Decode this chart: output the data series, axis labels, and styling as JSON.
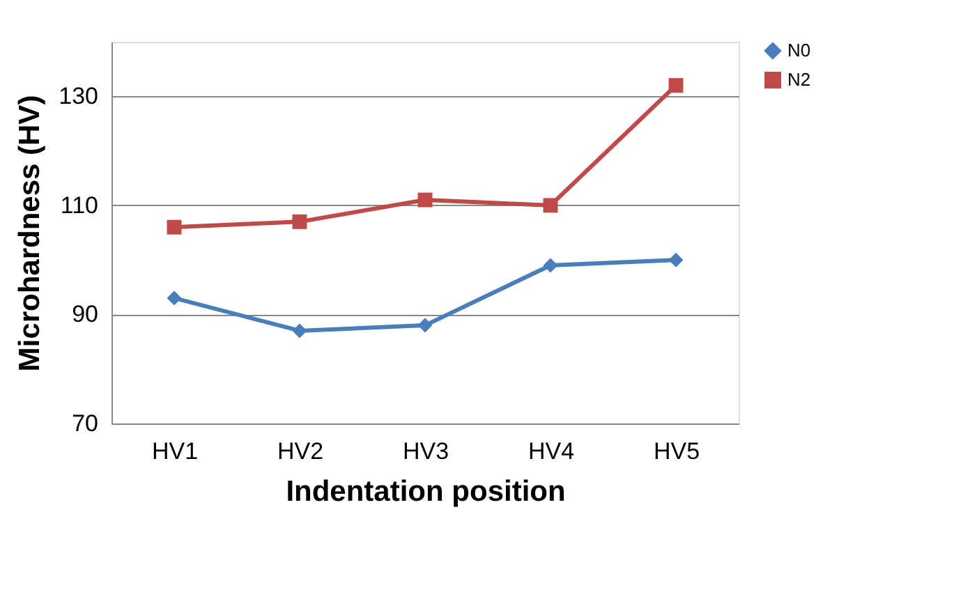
{
  "chart_data": {
    "type": "line",
    "xlabel": "Indentation position",
    "ylabel": "Microhardness (HV)",
    "categories": [
      "HV1",
      "HV2",
      "HV3",
      "HV4",
      "HV5"
    ],
    "series": [
      {
        "name": "N0",
        "color": "#4a7ebb",
        "marker": "diamond",
        "values": [
          93,
          87,
          88,
          99,
          100
        ]
      },
      {
        "name": "N2",
        "color": "#be4b48",
        "marker": "square",
        "values": [
          106,
          107,
          111,
          110,
          132
        ]
      }
    ],
    "ylim": [
      70,
      140
    ],
    "yticks": [
      70,
      90,
      110,
      130
    ],
    "grid": "y",
    "legend": "right"
  }
}
